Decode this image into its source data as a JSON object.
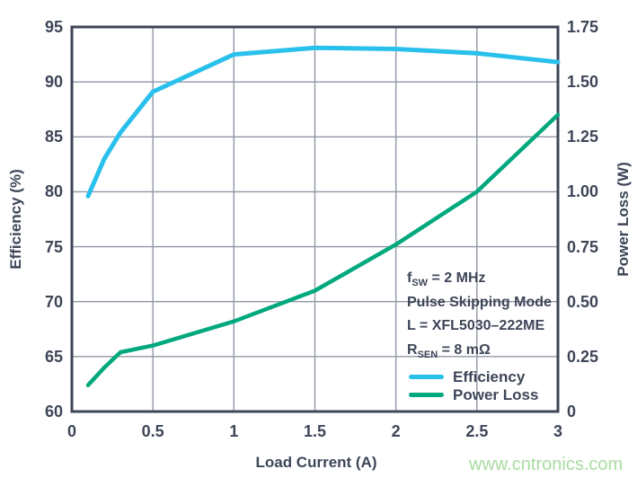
{
  "chart_data": {
    "type": "line",
    "x": [
      0.1,
      0.2,
      0.3,
      0.5,
      1.0,
      1.5,
      2.0,
      2.5,
      3.0
    ],
    "series": [
      {
        "name": "Efficiency",
        "axis": "left",
        "color": "#29c0ec",
        "values": [
          79.6,
          83.0,
          85.4,
          89.1,
          92.5,
          93.1,
          93.0,
          92.6,
          91.8
        ]
      },
      {
        "name": "Power Loss",
        "axis": "right",
        "color": "#00a87e",
        "values": [
          0.12,
          0.2,
          0.27,
          0.3,
          0.41,
          0.55,
          0.76,
          1.0,
          1.35
        ]
      }
    ],
    "xlabel": "Load Current (A)",
    "ylabel_left": "Efficiency (%)",
    "ylabel_right": "Power Loss (W)",
    "xlim": [
      0,
      3
    ],
    "ylim_left": [
      60,
      95
    ],
    "ylim_right": [
      0,
      1.75
    ],
    "x_ticks": [
      0,
      0.5,
      1,
      1.5,
      2,
      2.5,
      3
    ],
    "x_tick_labels": [
      "0",
      "0.5",
      "1",
      "1.5",
      "2",
      "2.5",
      "3"
    ],
    "y_ticks_left": [
      60,
      65,
      70,
      75,
      80,
      85,
      90,
      95
    ],
    "y_tick_labels_left": [
      "60",
      "65",
      "70",
      "75",
      "80",
      "85",
      "90",
      "95"
    ],
    "y_ticks_right": [
      0,
      0.25,
      0.5,
      0.75,
      1.0,
      1.25,
      1.5,
      1.75
    ],
    "y_tick_labels_right": [
      "0",
      "0.25",
      "0.50",
      "0.75",
      "1.00",
      "1.25",
      "1.50",
      "1.75"
    ],
    "grid": true,
    "legend_position": "inside-bottom-right"
  },
  "annotation": {
    "lines": [
      {
        "pre": "f",
        "sub": "SW",
        "post": " = 2 MHz"
      },
      {
        "pre": "Pulse Skipping Mode",
        "sub": "",
        "post": ""
      },
      {
        "pre": "L = XFL5030–222ME",
        "sub": "",
        "post": ""
      },
      {
        "pre": "R",
        "sub": "SEN",
        "post": " = 8 mΩ"
      }
    ]
  },
  "legend": {
    "items": [
      {
        "label": "Efficiency",
        "color": "#29c0ec"
      },
      {
        "label": "Power Loss",
        "color": "#00a87e"
      }
    ]
  },
  "watermark": "www.cntronics.com",
  "colors": {
    "efficiency": "#29c0ec",
    "power_loss": "#00a87e",
    "frame": "#3d4557",
    "grid": "#9097a4",
    "text": "#3d4557",
    "watermark": "#a9dba1",
    "background": "#ffffff"
  }
}
